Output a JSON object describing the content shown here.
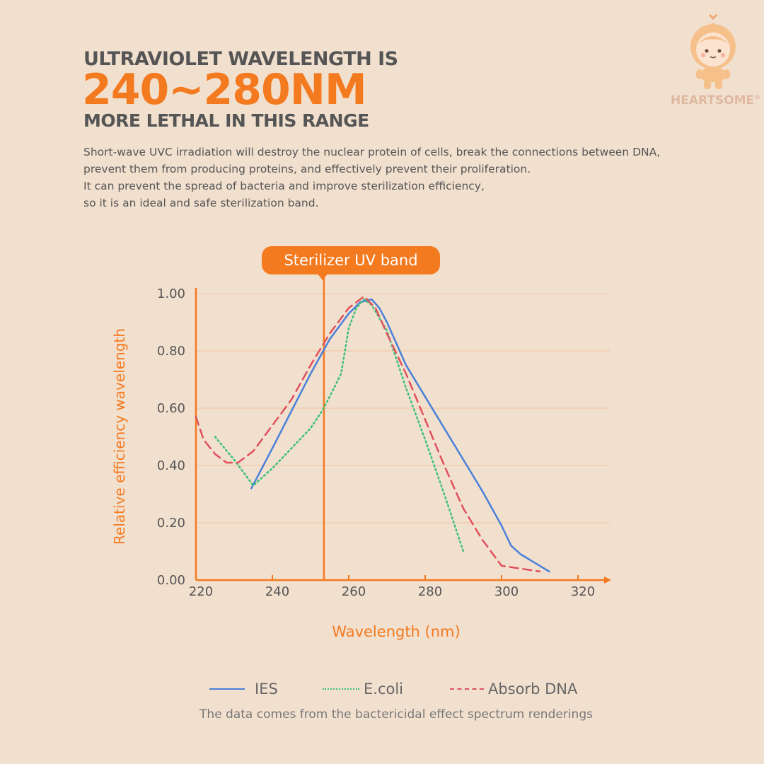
{
  "header": {
    "line1": "ULTRAVIOLET WAVELENGTH IS",
    "line2": "240~280NM",
    "line3": "MORE LETHAL IN THIS RANGE"
  },
  "description": [
    "Short-wave UVC irradiation will destroy the nuclear protein of cells, break the connections between DNA,",
    "prevent them from producing proteins, and effectively prevent their proliferation.",
    "It can prevent the spread of bacteria and improve sterilization efficiency,",
    "so it is an ideal and safe sterilization band."
  ],
  "brand": {
    "name": "HEARTSOME",
    "registered": "®"
  },
  "colors": {
    "accent": "#f47a20",
    "ies": "#4a80d8",
    "ecoli": "#3cbf7a",
    "dna": "#e0505a",
    "grid": "#f3c49c"
  },
  "source_note": "The data comes from the bactericidal effect spectrum renderings",
  "chart_data": {
    "type": "line",
    "xlabel": "Wavelength (nm)",
    "ylabel": "Relative efficiency wavelength",
    "xlim": [
      220,
      330
    ],
    "ylim": [
      0,
      1.0
    ],
    "xticks": [
      "220",
      "240",
      "260",
      "280",
      "300",
      "320"
    ],
    "yticks": [
      "0.00",
      "0.20",
      "0.40",
      "0.60",
      "0.80",
      "1.00"
    ],
    "grid": "horizontal",
    "legend_position": "bottom",
    "annotation": {
      "label": "Sterilizer UV band",
      "x": 253.5
    },
    "series": [
      {
        "name": "IES",
        "color": "#4a80d8",
        "style": "solid",
        "points": [
          [
            234.5,
            0.32
          ],
          [
            240,
            0.46
          ],
          [
            245,
            0.59
          ],
          [
            250,
            0.72
          ],
          [
            255,
            0.84
          ],
          [
            260,
            0.93
          ],
          [
            263,
            0.97
          ],
          [
            266,
            0.98
          ],
          [
            268,
            0.95
          ],
          [
            270,
            0.9
          ],
          [
            272,
            0.84
          ],
          [
            275,
            0.75
          ],
          [
            280,
            0.64
          ],
          [
            285,
            0.53
          ],
          [
            290,
            0.42
          ],
          [
            295,
            0.31
          ],
          [
            300,
            0.19
          ],
          [
            302.5,
            0.12
          ],
          [
            305,
            0.09
          ],
          [
            310,
            0.05
          ],
          [
            312.5,
            0.03
          ]
        ]
      },
      {
        "name": "E.coli",
        "color": "#3cbf7a",
        "style": "dotted",
        "points": [
          [
            225,
            0.5
          ],
          [
            230,
            0.42
          ],
          [
            235,
            0.33
          ],
          [
            240,
            0.39
          ],
          [
            245,
            0.46
          ],
          [
            250,
            0.53
          ],
          [
            253,
            0.59
          ],
          [
            255,
            0.64
          ],
          [
            258,
            0.72
          ],
          [
            260,
            0.88
          ],
          [
            262,
            0.95
          ],
          [
            264,
            0.98
          ],
          [
            266,
            0.96
          ],
          [
            270,
            0.87
          ],
          [
            275,
            0.67
          ],
          [
            280,
            0.49
          ],
          [
            285,
            0.3
          ],
          [
            290,
            0.1
          ]
        ]
      },
      {
        "name": "Absorb DNA",
        "color": "#e0505a",
        "style": "dashed",
        "points": [
          [
            220,
            0.57
          ],
          [
            222,
            0.49
          ],
          [
            225,
            0.44
          ],
          [
            228,
            0.41
          ],
          [
            231,
            0.41
          ],
          [
            235,
            0.45
          ],
          [
            240,
            0.54
          ],
          [
            245,
            0.63
          ],
          [
            250,
            0.75
          ],
          [
            255,
            0.86
          ],
          [
            260,
            0.95
          ],
          [
            264,
            0.99
          ],
          [
            267,
            0.95
          ],
          [
            270,
            0.86
          ],
          [
            275,
            0.72
          ],
          [
            280,
            0.56
          ],
          [
            285,
            0.4
          ],
          [
            290,
            0.25
          ],
          [
            295,
            0.14
          ],
          [
            300,
            0.05
          ],
          [
            305,
            0.04
          ],
          [
            310,
            0.03
          ]
        ]
      }
    ]
  }
}
